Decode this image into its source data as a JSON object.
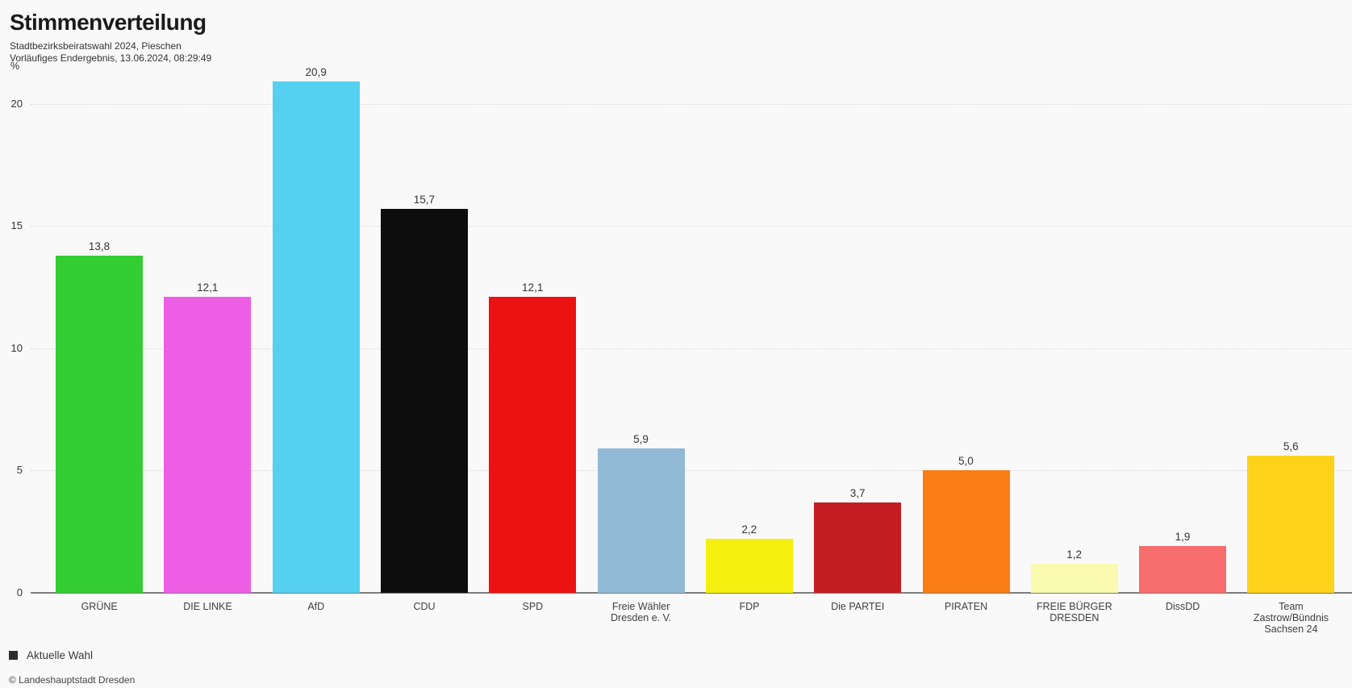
{
  "header": {
    "title": "Stimmenverteilung",
    "subtitle1": "Stadtbezirksbeiratswahl 2024, Pieschen",
    "subtitle2": "Vorläufiges Endergebnis, 13.06.2024, 08:29:49"
  },
  "chart_data": {
    "type": "bar",
    "title": "Stimmenverteilung",
    "subtitle": [
      "Stadtbezirksbeiratswahl 2024, Pieschen",
      "Vorläufiges Endergebnis, 13.06.2024, 08:29:49"
    ],
    "ylabel": "%",
    "ylim": [
      0,
      21.6
    ],
    "yticks": [
      0,
      5,
      10,
      15,
      20
    ],
    "grid": "horizontal dotted",
    "legend_position": "bottom-left",
    "categories": [
      "GRÜNE",
      "DIE LINKE",
      "AfD",
      "CDU",
      "SPD",
      "Freie Wähler Dresden e. V.",
      "FDP",
      "Die PARTEI",
      "PIRATEN",
      "FREIE BÜRGER DRESDEN",
      "DissDD",
      "Team Zastrow/Bündnis Sachsen 24"
    ],
    "label_lines": [
      [
        "GRÜNE"
      ],
      [
        "DIE LINKE"
      ],
      [
        "AfD"
      ],
      [
        "CDU"
      ],
      [
        "SPD"
      ],
      [
        "Freie Wähler",
        "Dresden e. V."
      ],
      [
        "FDP"
      ],
      [
        "Die PARTEI"
      ],
      [
        "PIRATEN"
      ],
      [
        "FREIE BÜRGER",
        "DRESDEN"
      ],
      [
        "DissDD"
      ],
      [
        "Team",
        "Zastrow/Bündnis",
        "Sachsen 24"
      ]
    ],
    "series": [
      {
        "name": "Aktuelle Wahl",
        "values": [
          13.8,
          12.1,
          20.9,
          15.7,
          12.1,
          5.9,
          2.2,
          3.7,
          5.0,
          1.2,
          1.9,
          5.6
        ],
        "value_labels": [
          "13,8",
          "12,1",
          "20,9",
          "15,7",
          "12,1",
          "5,9",
          "2,2",
          "3,7",
          "5,0",
          "1,2",
          "1,9",
          "5,6"
        ]
      }
    ],
    "bar_colors": [
      "#33cc33",
      "#ee5ee4",
      "#55d0f0",
      "#0d0d0d",
      "#ec1212",
      "#92b9d5",
      "#f4ef0e",
      "#c41e23",
      "#fa7d14",
      "#f9fab0",
      "#f76c6c",
      "#fdd21a"
    ]
  },
  "legend": {
    "label": "Aktuelle Wahl",
    "swatch_color": "#2d2d2d"
  },
  "footer": {
    "copyright": "© Landeshauptstadt Dresden"
  },
  "colors": {
    "background": "#f9f9f9",
    "gridline": "#d8d8d8",
    "axis": "#7d7d7d",
    "text": "#333333"
  }
}
